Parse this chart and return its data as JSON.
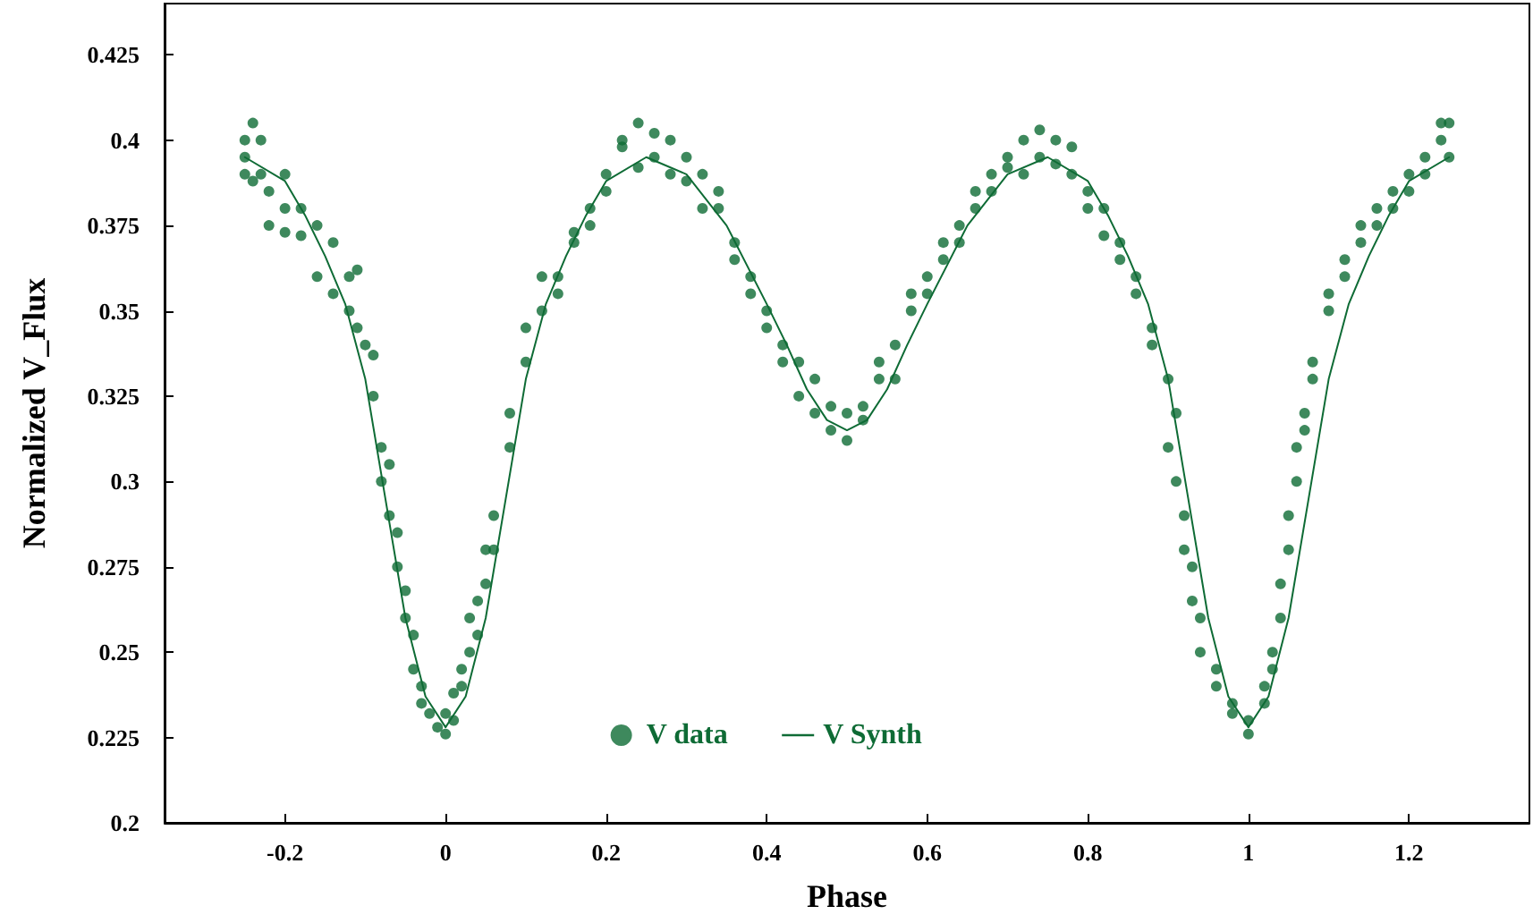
{
  "chart_data": {
    "type": "scatter",
    "xlabel": "Phase",
    "ylabel": "Normalized V_Flux",
    "xlim": [
      -0.35,
      1.35
    ],
    "xticks": [
      -0.2,
      0,
      0.2,
      0.4,
      0.6,
      0.8,
      1,
      1.2
    ],
    "ylim": [
      0.2,
      0.44
    ],
    "yticks": [
      0.2,
      0.225,
      0.25,
      0.275,
      0.3,
      0.325,
      0.35,
      0.375,
      0.4,
      0.425
    ],
    "grid": false,
    "legend": "bottom",
    "series": [
      {
        "name": "V data",
        "marker": "circle",
        "color": "#0e6b35",
        "x": [
          -0.25,
          -0.25,
          -0.25,
          -0.24,
          -0.24,
          -0.23,
          -0.23,
          -0.22,
          -0.22,
          -0.2,
          -0.2,
          -0.2,
          -0.18,
          -0.18,
          -0.16,
          -0.16,
          -0.14,
          -0.14,
          -0.12,
          -0.12,
          -0.11,
          -0.11,
          -0.1,
          -0.09,
          -0.09,
          -0.08,
          -0.08,
          -0.07,
          -0.07,
          -0.06,
          -0.06,
          -0.05,
          -0.05,
          -0.04,
          -0.04,
          -0.03,
          -0.03,
          -0.02,
          -0.01,
          0,
          0,
          0.01,
          0.01,
          0.02,
          0.02,
          0.03,
          0.03,
          0.04,
          0.04,
          0.05,
          0.05,
          0.06,
          0.06,
          0.08,
          0.08,
          0.1,
          0.1,
          0.12,
          0.12,
          0.14,
          0.14,
          0.16,
          0.16,
          0.18,
          0.18,
          0.2,
          0.2,
          0.22,
          0.22,
          0.24,
          0.24,
          0.26,
          0.26,
          0.28,
          0.28,
          0.3,
          0.3,
          0.32,
          0.32,
          0.34,
          0.34,
          0.36,
          0.36,
          0.38,
          0.38,
          0.4,
          0.4,
          0.42,
          0.42,
          0.44,
          0.44,
          0.46,
          0.46,
          0.48,
          0.48,
          0.5,
          0.5,
          0.52,
          0.52,
          0.54,
          0.54,
          0.56,
          0.56,
          0.58,
          0.58,
          0.6,
          0.6,
          0.62,
          0.62,
          0.64,
          0.64,
          0.66,
          0.66,
          0.68,
          0.68,
          0.7,
          0.7,
          0.72,
          0.72,
          0.74,
          0.74,
          0.76,
          0.76,
          0.78,
          0.78,
          0.8,
          0.8,
          0.82,
          0.82,
          0.84,
          0.84,
          0.86,
          0.86,
          0.88,
          0.88,
          0.9,
          0.9,
          0.91,
          0.91,
          0.92,
          0.92,
          0.93,
          0.93,
          0.94,
          0.94,
          0.96,
          0.96,
          0.98,
          0.98,
          1,
          1,
          1.02,
          1.02,
          1.03,
          1.03,
          1.04,
          1.04,
          1.05,
          1.05,
          1.06,
          1.06,
          1.07,
          1.07,
          1.08,
          1.08,
          1.1,
          1.1,
          1.12,
          1.12,
          1.14,
          1.14,
          1.16,
          1.16,
          1.18,
          1.18,
          1.2,
          1.2,
          1.22,
          1.22,
          1.24,
          1.24,
          1.25,
          1.25
        ],
        "values": [
          0.4,
          0.39,
          0.395,
          0.405,
          0.388,
          0.39,
          0.4,
          0.385,
          0.375,
          0.39,
          0.38,
          0.373,
          0.38,
          0.372,
          0.375,
          0.36,
          0.37,
          0.355,
          0.36,
          0.35,
          0.362,
          0.345,
          0.34,
          0.325,
          0.337,
          0.31,
          0.3,
          0.305,
          0.29,
          0.285,
          0.275,
          0.268,
          0.26,
          0.255,
          0.245,
          0.24,
          0.235,
          0.232,
          0.228,
          0.226,
          0.232,
          0.238,
          0.23,
          0.245,
          0.24,
          0.25,
          0.26,
          0.265,
          0.255,
          0.27,
          0.28,
          0.29,
          0.28,
          0.31,
          0.32,
          0.335,
          0.345,
          0.35,
          0.36,
          0.36,
          0.355,
          0.37,
          0.373,
          0.38,
          0.375,
          0.385,
          0.39,
          0.398,
          0.4,
          0.405,
          0.392,
          0.402,
          0.395,
          0.4,
          0.39,
          0.395,
          0.388,
          0.39,
          0.38,
          0.38,
          0.385,
          0.37,
          0.365,
          0.36,
          0.355,
          0.345,
          0.35,
          0.34,
          0.335,
          0.335,
          0.325,
          0.33,
          0.32,
          0.315,
          0.322,
          0.312,
          0.32,
          0.322,
          0.318,
          0.33,
          0.335,
          0.34,
          0.33,
          0.35,
          0.355,
          0.36,
          0.355,
          0.365,
          0.37,
          0.375,
          0.37,
          0.38,
          0.385,
          0.39,
          0.385,
          0.395,
          0.392,
          0.4,
          0.39,
          0.403,
          0.395,
          0.4,
          0.393,
          0.398,
          0.39,
          0.385,
          0.38,
          0.38,
          0.372,
          0.37,
          0.365,
          0.36,
          0.355,
          0.345,
          0.34,
          0.33,
          0.31,
          0.3,
          0.32,
          0.29,
          0.28,
          0.275,
          0.265,
          0.26,
          0.25,
          0.245,
          0.24,
          0.232,
          0.235,
          0.226,
          0.23,
          0.24,
          0.235,
          0.25,
          0.245,
          0.26,
          0.27,
          0.28,
          0.29,
          0.3,
          0.31,
          0.32,
          0.315,
          0.335,
          0.33,
          0.35,
          0.355,
          0.36,
          0.365,
          0.37,
          0.375,
          0.38,
          0.375,
          0.385,
          0.38,
          0.39,
          0.385,
          0.395,
          0.39,
          0.4,
          0.405,
          0.405,
          0.395
        ]
      },
      {
        "name": "V Synth",
        "type": "line",
        "marker": "none",
        "line_style": "solid",
        "color": "#0e6b35",
        "x": [
          -0.25,
          -0.2,
          -0.175,
          -0.15,
          -0.125,
          -0.1,
          -0.075,
          -0.05,
          -0.025,
          0,
          0.025,
          0.05,
          0.075,
          0.1,
          0.125,
          0.15,
          0.175,
          0.2,
          0.25,
          0.3,
          0.35,
          0.4,
          0.425,
          0.45,
          0.475,
          0.5,
          0.525,
          0.55,
          0.575,
          0.6,
          0.65,
          0.7,
          0.75,
          0.8,
          0.825,
          0.85,
          0.875,
          0.9,
          0.925,
          0.95,
          0.975,
          1,
          1.025,
          1.05,
          1.075,
          1.1,
          1.125,
          1.15,
          1.175,
          1.2,
          1.25
        ],
        "values": [
          0.395,
          0.388,
          0.378,
          0.366,
          0.352,
          0.33,
          0.295,
          0.26,
          0.237,
          0.228,
          0.237,
          0.26,
          0.295,
          0.33,
          0.352,
          0.366,
          0.378,
          0.388,
          0.395,
          0.39,
          0.375,
          0.352,
          0.34,
          0.327,
          0.318,
          0.315,
          0.318,
          0.327,
          0.34,
          0.352,
          0.375,
          0.39,
          0.395,
          0.388,
          0.378,
          0.366,
          0.352,
          0.33,
          0.295,
          0.26,
          0.237,
          0.228,
          0.237,
          0.26,
          0.295,
          0.33,
          0.352,
          0.366,
          0.378,
          0.388,
          0.395
        ]
      }
    ]
  }
}
